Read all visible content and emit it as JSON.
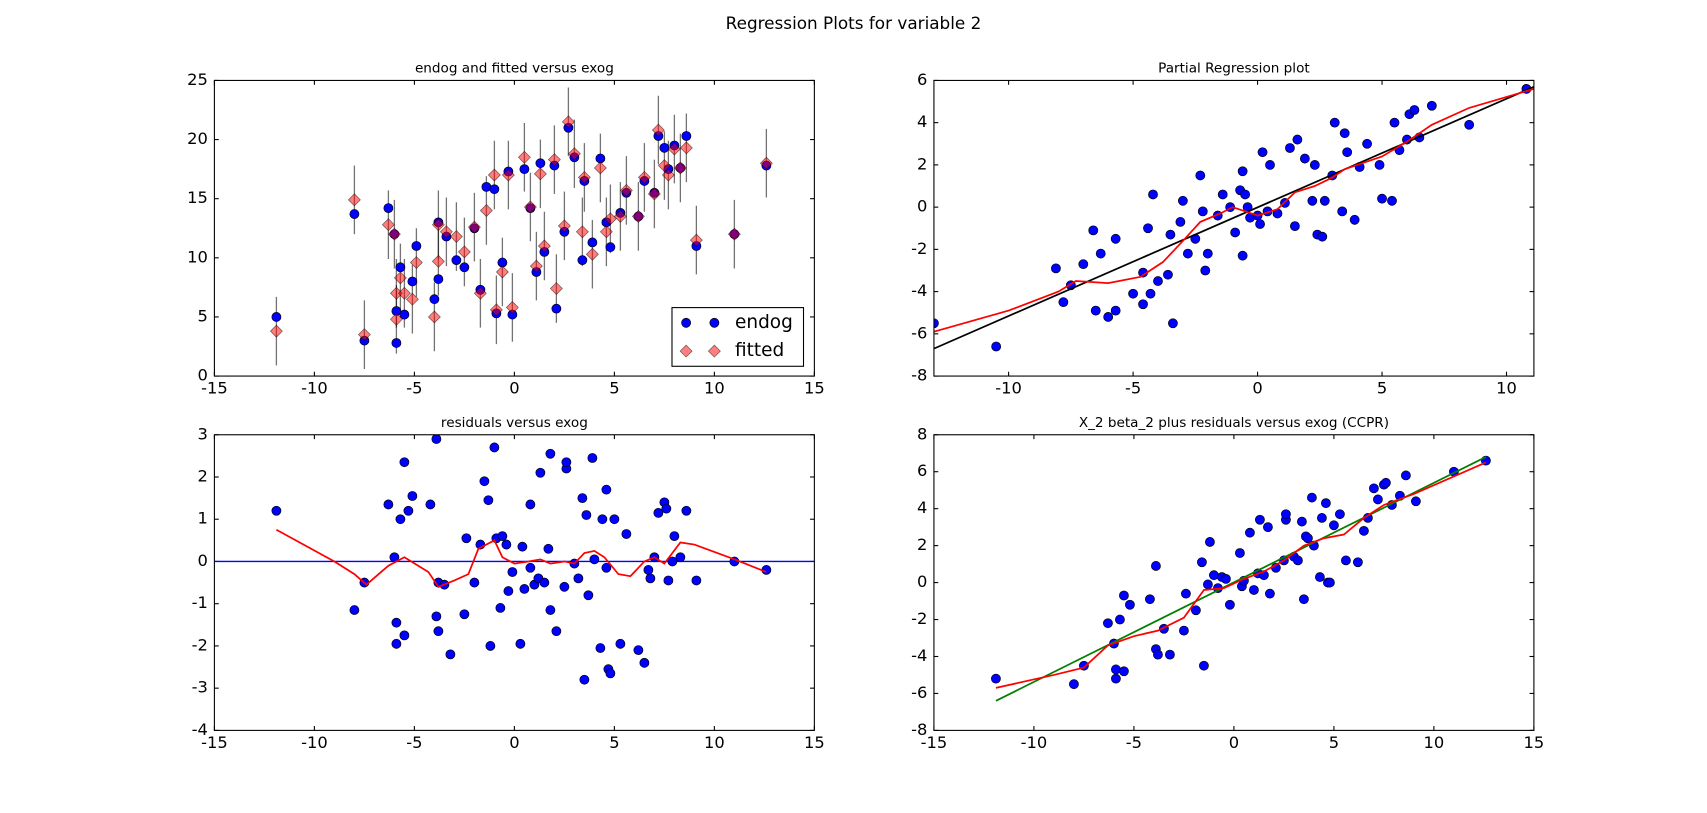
{
  "title": "Regression Plots for variable 2",
  "chart_data": [
    {
      "type": "scatter",
      "title": "endog and fitted versus exog",
      "xlim": [
        -15,
        15
      ],
      "ylim": [
        0,
        25
      ],
      "xticks": [
        -15,
        -10,
        -5,
        0,
        5,
        10,
        15
      ],
      "yticks": [
        0,
        5,
        10,
        15,
        20,
        25
      ],
      "legend": "lower right",
      "yerr": 2.9,
      "x": [
        -11.9,
        -8.0,
        -7.5,
        -6.3,
        -6.0,
        -5.9,
        -5.9,
        -5.7,
        -5.5,
        -5.1,
        -4.9,
        -4.0,
        -3.8,
        -3.8,
        -3.4,
        -2.9,
        -2.5,
        -2.0,
        -1.7,
        -1.4,
        -1.0,
        -0.9,
        -0.6,
        -0.3,
        -0.1,
        0.5,
        0.8,
        1.1,
        1.3,
        1.5,
        2.0,
        2.1,
        2.5,
        2.7,
        3.0,
        3.4,
        3.5,
        3.9,
        4.3,
        4.6,
        4.8,
        5.3,
        5.6,
        6.2,
        6.5,
        7.0,
        7.2,
        7.5,
        7.7,
        8.0,
        8.3,
        8.6,
        9.1,
        11.0,
        12.6
      ],
      "series": [
        {
          "name": "endog",
          "color": "#0000ff",
          "marker": "o",
          "values": [
            5.0,
            13.7,
            3.0,
            14.2,
            12.0,
            2.8,
            5.5,
            9.2,
            5.2,
            8.0,
            11.0,
            6.5,
            8.2,
            13.0,
            11.8,
            9.8,
            9.2,
            12.5,
            7.3,
            16.0,
            15.8,
            5.3,
            9.6,
            17.3,
            5.2,
            17.5,
            14.2,
            8.8,
            18.0,
            10.5,
            17.8,
            5.7,
            12.2,
            21.0,
            18.5,
            9.8,
            16.5,
            11.3,
            18.4,
            13.0,
            10.9,
            13.8,
            15.5,
            13.5,
            16.5,
            15.5,
            20.3,
            19.3,
            17.5,
            19.5,
            17.6,
            20.3,
            11.0,
            12.0,
            17.8
          ]
        },
        {
          "name": "fitted",
          "color": "#ff0000",
          "marker": "D",
          "values": [
            3.8,
            14.9,
            3.5,
            12.8,
            12.0,
            4.8,
            7.0,
            8.3,
            7.0,
            6.5,
            9.6,
            5.0,
            9.7,
            12.8,
            12.2,
            11.8,
            10.5,
            12.6,
            7.0,
            14.0,
            17.0,
            5.6,
            8.8,
            17.0,
            5.8,
            18.5,
            14.3,
            9.3,
            17.1,
            11.0,
            18.3,
            7.4,
            12.7,
            21.5,
            18.8,
            12.2,
            16.8,
            10.3,
            17.6,
            12.2,
            13.3,
            13.5,
            15.7,
            13.5,
            16.8,
            15.4,
            20.8,
            17.8,
            17.0,
            19.2,
            17.6,
            19.3,
            11.5,
            12.0,
            18.0
          ]
        }
      ]
    },
    {
      "type": "scatter",
      "title": "Partial Regression plot",
      "xlim": [
        -13.0,
        11.1
      ],
      "ylim": [
        -8,
        6
      ],
      "xticks": [
        -10,
        -5,
        0,
        5,
        10
      ],
      "yticks": [
        -8,
        -6,
        -4,
        -2,
        0,
        2,
        4,
        6
      ],
      "series": [
        {
          "color": "#0000ff",
          "marker": "o",
          "x": [
            -13,
            -10.5,
            -8.1,
            -7.5,
            -7.8,
            -7.0,
            -6.6,
            -6.3,
            -6.5,
            -6.0,
            -5.7,
            -5.7,
            -5.0,
            -4.6,
            -4.6,
            -4.4,
            -4.3,
            -4.2,
            -4.0,
            -3.6,
            -3.5,
            -3.4,
            -3.1,
            -3.0,
            -2.8,
            -2.5,
            -2.3,
            -2.2,
            -2.1,
            -2.0,
            -1.6,
            -1.4,
            -1.1,
            -0.9,
            -0.7,
            -0.6,
            -0.6,
            -0.5,
            -0.4,
            -0.3,
            0,
            0.1,
            0.2,
            0.4,
            0.5,
            0.8,
            1.1,
            1.3,
            1.5,
            1.6,
            1.9,
            2.2,
            2.3,
            2.4,
            2.6,
            2.7,
            3.0,
            3.1,
            3.4,
            3.5,
            3.6,
            3.9,
            4.1,
            4.4,
            4.9,
            5.0,
            5.4,
            5.5,
            5.7,
            6.0,
            6.1,
            6.3,
            6.5,
            7.0,
            8.5,
            10.8
          ],
          "values": [
            -5.5,
            -6.6,
            -2.9,
            -3.7,
            -4.5,
            -2.7,
            -1.1,
            -2.2,
            -4.9,
            -5.2,
            -1.5,
            -4.9,
            -4.1,
            -3.1,
            -4.6,
            -1.0,
            -4.1,
            0.6,
            -3.5,
            -3.2,
            -1.3,
            -5.5,
            -0.7,
            0.3,
            -2.2,
            -1.5,
            1.5,
            -0.2,
            -3.0,
            -2.2,
            -0.4,
            0.6,
            0.0,
            -1.2,
            0.8,
            1.7,
            -2.3,
            0.6,
            0.0,
            -0.5,
            -0.4,
            -0.8,
            2.6,
            -0.2,
            2.0,
            -0.3,
            0.2,
            2.8,
            -0.9,
            3.2,
            2.3,
            0.3,
            2.0,
            -1.3,
            -1.4,
            0.3,
            1.5,
            4.0,
            -0.2,
            3.5,
            2.6,
            -0.6,
            1.9,
            3.0,
            2.0,
            0.4,
            0.3,
            4.0,
            2.7,
            3.2,
            4.4,
            4.6,
            3.3,
            4.8,
            3.9,
            5.6
          ]
        }
      ],
      "lines": [
        {
          "color": "#000000",
          "x": [
            -13.0,
            11.1
          ],
          "y": [
            -6.7,
            5.7
          ]
        },
        {
          "color": "#ff0000",
          "x": [
            -13,
            -10,
            -8,
            -7.3,
            -6,
            -4.7,
            -3.8,
            -3.0,
            -2.3,
            -1.5,
            -1,
            -0.5,
            0,
            0.8,
            1.5,
            2.3,
            3,
            3.5,
            4,
            5,
            6,
            7,
            8.5,
            11.1
          ],
          "y": [
            -5.9,
            -4.9,
            -4.0,
            -3.5,
            -3.6,
            -3.3,
            -2.6,
            -1.6,
            -0.7,
            -0.3,
            0,
            -0.2,
            -0.4,
            -0.1,
            0.7,
            1.0,
            1.4,
            1.8,
            2.0,
            2.4,
            3.1,
            3.9,
            4.7,
            5.6
          ]
        }
      ]
    },
    {
      "type": "scatter",
      "title": "residuals versus exog",
      "xlim": [
        -15,
        15
      ],
      "ylim": [
        -4,
        3
      ],
      "xticks": [
        -15,
        -10,
        -5,
        0,
        5,
        10,
        15
      ],
      "yticks": [
        -4,
        -3,
        -2,
        -1,
        0,
        1,
        2,
        3
      ],
      "hline": {
        "color": "#0000ff",
        "y": 0
      },
      "series": [
        {
          "color": "#0000ff",
          "marker": "o",
          "x": [
            -11.9,
            -8.0,
            -7.5,
            -6.3,
            -6.0,
            -5.9,
            -5.9,
            -5.7,
            -5.5,
            -5.5,
            -5.3,
            -5.1,
            -4.2,
            -3.9,
            -3.9,
            -3.8,
            -3.8,
            -3.5,
            -3.2,
            -2.5,
            -2.4,
            -2.0,
            -1.7,
            -1.5,
            -1.3,
            -1.2,
            -1.0,
            -0.9,
            -0.7,
            -0.6,
            -0.4,
            -0.3,
            -0.1,
            0.3,
            0.4,
            0.5,
            0.8,
            0.8,
            1.0,
            1.2,
            1.3,
            1.5,
            1.7,
            1.8,
            1.8,
            2.1,
            2.5,
            2.6,
            2.6,
            3.0,
            3.2,
            3.4,
            3.5,
            3.6,
            3.7,
            3.9,
            4.0,
            4.3,
            4.4,
            4.6,
            4.6,
            4.7,
            4.8,
            5.0,
            5.3,
            5.6,
            6.2,
            6.5,
            6.7,
            6.8,
            7.0,
            7.2,
            7.5,
            7.6,
            7.7,
            7.9,
            8.0,
            8.3,
            8.6,
            9.1,
            11.0,
            12.6
          ],
          "values": [
            1.2,
            -1.15,
            -0.5,
            1.35,
            0.1,
            -1.45,
            -1.95,
            1.0,
            2.35,
            -1.75,
            1.2,
            1.55,
            1.35,
            2.9,
            -1.3,
            -1.65,
            -0.5,
            -0.55,
            -2.2,
            -1.25,
            0.55,
            -0.5,
            0.4,
            1.9,
            1.45,
            -2.0,
            2.7,
            0.55,
            -1.1,
            0.6,
            0.4,
            -0.7,
            -0.25,
            -1.95,
            0.35,
            -0.65,
            -0.15,
            1.35,
            -0.55,
            -0.4,
            2.1,
            -0.5,
            0.3,
            -1.15,
            2.55,
            -1.65,
            -0.6,
            2.2,
            2.35,
            -0.05,
            -0.4,
            1.5,
            -2.8,
            1.1,
            -0.8,
            2.45,
            0.05,
            -2.05,
            1.0,
            1.7,
            -0.15,
            -2.55,
            -2.65,
            1.0,
            -1.95,
            0.65,
            -2.1,
            -2.4,
            -0.2,
            -0.4,
            0.1,
            1.15,
            1.4,
            1.25,
            -0.45,
            0.0,
            0.6,
            0.1,
            1.2,
            -0.45,
            0.0,
            -0.2
          ]
        }
      ],
      "lines": [
        {
          "color": "#ff0000",
          "x": [
            -11.9,
            -9,
            -8,
            -7.4,
            -6.3,
            -5.5,
            -4.3,
            -3.8,
            -3,
            -2.3,
            -1.8,
            -1.0,
            -0.6,
            0,
            0.7,
            1.3,
            1.8,
            2.5,
            3,
            3.5,
            4,
            4.5,
            5.2,
            5.8,
            6.5,
            7,
            7.5,
            8.3,
            9,
            11,
            12.6
          ],
          "y": [
            0.75,
            0.0,
            -0.3,
            -0.55,
            -0.1,
            0.1,
            -0.25,
            -0.6,
            -0.45,
            -0.3,
            0.3,
            0.5,
            0.1,
            -0.05,
            0.0,
            0.05,
            -0.05,
            0.0,
            -0.05,
            0.2,
            0.25,
            0.1,
            -0.3,
            -0.35,
            0,
            0.1,
            -0.05,
            0.45,
            0.4,
            0.05,
            -0.25
          ]
        }
      ]
    },
    {
      "type": "scatter",
      "title": "X_2 beta_2 plus residuals versus exog (CCPR)",
      "xlim": [
        -15,
        15
      ],
      "ylim": [
        -8,
        8
      ],
      "xticks": [
        -15,
        -10,
        -5,
        0,
        5,
        10,
        15
      ],
      "yticks": [
        -8,
        -6,
        -4,
        -2,
        0,
        2,
        4,
        6,
        8
      ],
      "series": [
        {
          "color": "#0000ff",
          "marker": "o",
          "x": [
            -11.9,
            -8.0,
            -7.5,
            -6.3,
            -6.0,
            -5.9,
            -5.9,
            -5.7,
            -5.5,
            -5.5,
            -5.2,
            -4.2,
            -3.9,
            -3.9,
            -3.8,
            -3.5,
            -3.2,
            -2.5,
            -2.4,
            -1.9,
            -1.6,
            -1.5,
            -1.3,
            -1.2,
            -1.0,
            -0.8,
            -0.6,
            -0.4,
            -0.2,
            0.3,
            0.4,
            0.5,
            0.8,
            1.0,
            1.2,
            1.3,
            1.5,
            1.7,
            1.8,
            2.1,
            2.5,
            2.6,
            2.6,
            3.0,
            3.2,
            3.4,
            3.5,
            3.6,
            3.7,
            3.9,
            4.0,
            4.3,
            4.4,
            4.6,
            4.7,
            4.8,
            5.0,
            5.3,
            5.6,
            6.2,
            6.5,
            6.7,
            7.0,
            7.2,
            7.5,
            7.6,
            7.9,
            8.3,
            8.6,
            9.1,
            11.0,
            12.6
          ],
          "values": [
            -5.2,
            -5.5,
            -4.5,
            -2.2,
            -3.3,
            -4.7,
            -5.2,
            -2.0,
            -0.7,
            -4.8,
            -1.2,
            -0.9,
            0.9,
            -3.6,
            -3.9,
            -2.5,
            -3.9,
            -2.6,
            -0.6,
            -1.5,
            1.1,
            -4.5,
            -0.1,
            2.2,
            0.4,
            -0.3,
            0.3,
            0.2,
            -1.2,
            1.6,
            -0.2,
            0.1,
            2.7,
            -0.4,
            0.5,
            3.4,
            0.4,
            3.0,
            -0.6,
            0.8,
            1.2,
            3.4,
            3.7,
            1.4,
            1.2,
            3.3,
            -0.9,
            2.5,
            2.4,
            4.6,
            2.0,
            0.3,
            3.5,
            4.3,
            0.0,
            0.0,
            3.1,
            3.7,
            1.2,
            1.1,
            2.8,
            3.5,
            5.1,
            4.5,
            5.3,
            5.4,
            4.2,
            4.7,
            5.8,
            4.4,
            6.0,
            6.6
          ]
        }
      ],
      "lines": [
        {
          "color": "#008000",
          "x": [
            -11.9,
            12.6
          ],
          "y": [
            -6.4,
            6.8
          ]
        },
        {
          "color": "#ff0000",
          "x": [
            -11.9,
            -9,
            -7.5,
            -6.3,
            -5,
            -3.8,
            -2.5,
            -1.5,
            -0.5,
            0.5,
            1.5,
            2.5,
            3.5,
            4.5,
            5.5,
            6.5,
            7.5,
            9,
            12.6
          ],
          "y": [
            -5.7,
            -5.0,
            -4.6,
            -3.4,
            -2.9,
            -2.6,
            -1.9,
            -0.4,
            -0.3,
            0.2,
            0.6,
            1.2,
            2.0,
            2.4,
            2.6,
            3.5,
            4.2,
            4.8,
            6.5
          ]
        }
      ]
    }
  ]
}
